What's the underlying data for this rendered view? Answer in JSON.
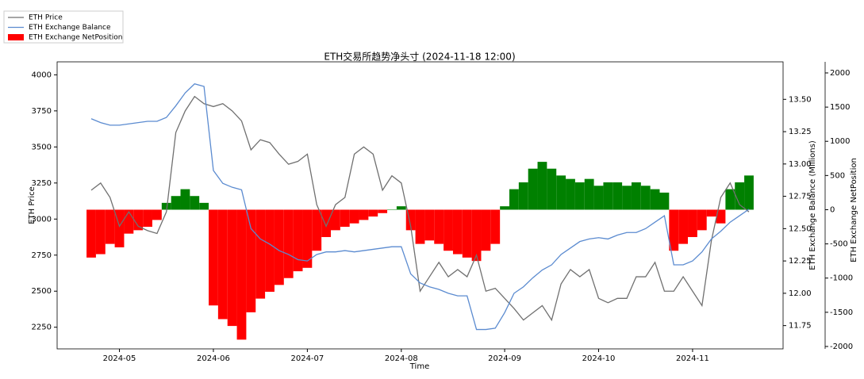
{
  "chart_data": {
    "type": "line",
    "title": "ETH交易所趋势净头寸 (2024-11-18 12:00)",
    "x_label": "Time",
    "y_label": "ETH Price",
    "y2_label": "ETH Exchange Balance (Millions)",
    "y3_label": "ETH Exchange NetPosition",
    "categories": [
      null,
      null,
      null,
      "2024-05",
      null,
      null,
      null,
      null,
      null,
      null,
      null,
      null,
      null,
      "2024-06",
      null,
      null,
      null,
      null,
      null,
      null,
      null,
      null,
      null,
      "2024-07",
      null,
      null,
      null,
      null,
      null,
      null,
      null,
      null,
      null,
      "2024-08",
      null,
      null,
      null,
      null,
      null,
      null,
      null,
      null,
      null,
      null,
      "2024-09",
      null,
      null,
      null,
      null,
      null,
      null,
      null,
      null,
      null,
      "2024-10",
      null,
      null,
      null,
      null,
      null,
      null,
      null,
      null,
      null,
      "2024-11",
      null,
      null,
      null,
      null,
      null,
      null
    ],
    "ylim": [
      2100,
      4090
    ],
    "yticks": [
      2250,
      2500,
      2750,
      3000,
      3250,
      3500,
      3750,
      4000
    ],
    "y2lim": [
      11.57,
      13.79
    ],
    "y2ticks": [
      11.75,
      {
        "value": 12,
        "label": "12.00"
      },
      12.25,
      {
        "value": 12.5,
        "label": "12.50"
      },
      12.75,
      {
        "value": 13,
        "label": "13.00"
      },
      13.25,
      {
        "value": 13.5,
        "label": "13.50"
      }
    ],
    "y3lim": [
      -2035,
      2162
    ],
    "y3ticks": [
      -2000,
      -1500,
      -1000,
      -500,
      0,
      500,
      1000,
      1500,
      2000
    ],
    "legend": "upper left",
    "series": [
      {
        "name": "ETH Price",
        "type": "line",
        "color": "#707070",
        "axis": "y",
        "values": [
          3200,
          3250,
          3150,
          2950,
          3050,
          2950,
          2920,
          2900,
          3050,
          3600,
          3750,
          3850,
          3800,
          3780,
          3800,
          3750,
          3680,
          3480,
          3550,
          3530,
          3450,
          3380,
          3400,
          3450,
          3100,
          2950,
          3100,
          3150,
          3450,
          3500,
          3450,
          3200,
          3300,
          3250,
          2950,
          2500,
          2600,
          2700,
          2600,
          2650,
          2600,
          2750,
          2500,
          2520,
          2450,
          2380,
          2300,
          2350,
          2400,
          2300,
          2550,
          2650,
          2600,
          2650,
          2450,
          2420,
          2450,
          2450,
          2600,
          2600,
          2700,
          2500,
          2500,
          2600,
          2500,
          2400,
          2850,
          3150,
          3250,
          3100,
          3050
        ]
      },
      {
        "name": "ETH Exchange Balance",
        "type": "line",
        "color": "#5b8bd0",
        "axis": "y2",
        "values": [
          13.35,
          13.32,
          13.3,
          13.3,
          13.31,
          13.32,
          13.33,
          13.33,
          13.36,
          13.45,
          13.55,
          13.62,
          13.6,
          12.95,
          12.85,
          12.82,
          12.8,
          12.5,
          12.42,
          12.38,
          12.33,
          12.3,
          12.26,
          12.25,
          12.3,
          12.32,
          12.32,
          12.33,
          12.32,
          12.33,
          12.34,
          12.35,
          12.36,
          12.36,
          12.15,
          12.08,
          12.05,
          12.03,
          12.0,
          11.98,
          11.98,
          11.72,
          11.72,
          11.73,
          11.85,
          12.0,
          12.05,
          12.12,
          12.18,
          12.22,
          12.3,
          12.35,
          12.4,
          12.42,
          12.43,
          12.42,
          12.45,
          12.47,
          12.47,
          12.5,
          12.55,
          12.6,
          12.22,
          12.22,
          12.25,
          12.32,
          12.42,
          12.48,
          12.55,
          12.6,
          12.65
        ]
      },
      {
        "name": "ETH Exchange NetPosition",
        "type": "bar",
        "color": "#ff0000",
        "positive_color": "#008000",
        "axis": "y3",
        "values": [
          -700,
          -650,
          -500,
          -550,
          -350,
          -300,
          -250,
          -150,
          100,
          200,
          300,
          200,
          100,
          -1400,
          -1600,
          -1700,
          -1900,
          -1500,
          -1300,
          -1200,
          -1100,
          -1000,
          -900,
          -850,
          -600,
          -400,
          -300,
          -250,
          -200,
          -150,
          -100,
          -50,
          0,
          50,
          -300,
          -500,
          -450,
          -500,
          -600,
          -650,
          -700,
          -750,
          -600,
          -500,
          50,
          300,
          400,
          600,
          700,
          600,
          500,
          450,
          400,
          450,
          350,
          400,
          400,
          350,
          400,
          350,
          300,
          250,
          -600,
          -500,
          -400,
          -300,
          -100,
          -200,
          300,
          400,
          500
        ]
      }
    ]
  }
}
